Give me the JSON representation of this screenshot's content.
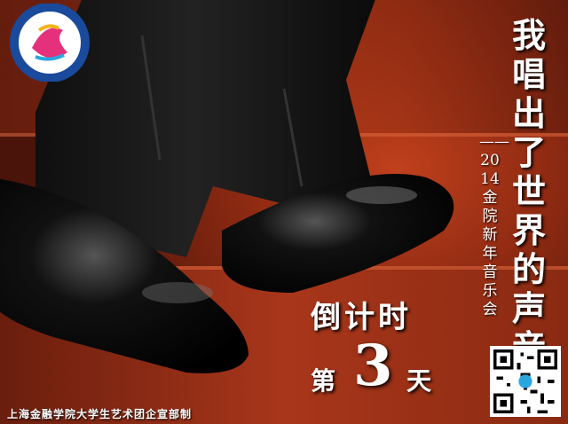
{
  "title": "我唱出了世界的声音",
  "subtitle": "——2014金院新年音乐会",
  "countdown": "倒计时",
  "day_prefix": "第",
  "day_number": "3",
  "day_suffix": "天",
  "footer": "上海金融学院大学生艺术团企宣部制",
  "colors": {
    "wood": "#b23a18",
    "text": "#ffffff",
    "logo_ring": "#1a4a9c"
  }
}
